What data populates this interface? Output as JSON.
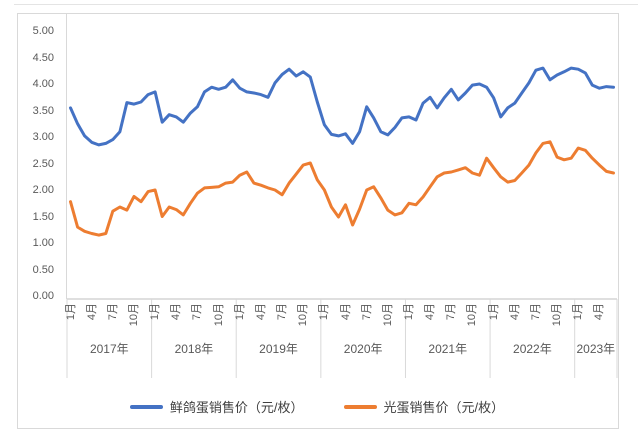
{
  "chart_data": {
    "type": "line",
    "title": "",
    "xlabel": "",
    "ylabel": "",
    "ylim": [
      0,
      5
    ],
    "y_ticks": [
      "0.00",
      "0.50",
      "1.00",
      "1.50",
      "2.00",
      "2.50",
      "3.00",
      "3.50",
      "4.00",
      "4.50",
      "5.00"
    ],
    "grid": false,
    "legend_position": "bottom",
    "x_axis_years": [
      {
        "label": "2017年",
        "month_ticks": [
          "1月",
          "4月",
          "7月",
          "10月"
        ],
        "n_points": 12
      },
      {
        "label": "2018年",
        "month_ticks": [
          "1月",
          "4月",
          "7月",
          "10月"
        ],
        "n_points": 12
      },
      {
        "label": "2019年",
        "month_ticks": [
          "1月",
          "4月",
          "7月",
          "10月"
        ],
        "n_points": 12
      },
      {
        "label": "2020年",
        "month_ticks": [
          "1月",
          "4月",
          "7月",
          "10月"
        ],
        "n_points": 12
      },
      {
        "label": "2021年",
        "month_ticks": [
          "1月",
          "4月",
          "7月",
          "10月"
        ],
        "n_points": 12
      },
      {
        "label": "2022年",
        "month_ticks": [
          "1月",
          "4月",
          "7月",
          "10月"
        ],
        "n_points": 12
      },
      {
        "label": "2023年",
        "month_ticks": [
          "1月",
          "4月"
        ],
        "n_points": 6
      }
    ],
    "series": [
      {
        "name": "鲜鸽蛋销售价（元/枚）",
        "color": "#4472C4",
        "values": [
          3.55,
          3.25,
          3.02,
          2.9,
          2.85,
          2.88,
          2.95,
          3.1,
          3.65,
          3.62,
          3.66,
          3.8,
          3.85,
          3.28,
          3.42,
          3.38,
          3.28,
          3.45,
          3.57,
          3.85,
          3.94,
          3.9,
          3.94,
          4.08,
          3.92,
          3.85,
          3.83,
          3.8,
          3.75,
          4.02,
          4.18,
          4.28,
          4.15,
          4.23,
          4.13,
          3.66,
          3.23,
          3.05,
          3.02,
          3.06,
          2.88,
          3.1,
          3.57,
          3.36,
          3.1,
          3.04,
          3.18,
          3.36,
          3.38,
          3.32,
          3.64,
          3.75,
          3.55,
          3.74,
          3.9,
          3.7,
          3.83,
          3.98,
          4.0,
          3.94,
          3.74,
          3.38,
          3.55,
          3.64,
          3.83,
          4.02,
          4.26,
          4.3,
          4.08,
          4.17,
          4.23,
          4.3,
          4.28,
          4.21,
          3.98,
          3.92,
          3.95,
          3.94
        ]
      },
      {
        "name": "光蛋销售价（元/枚）",
        "color": "#ED7D31",
        "values": [
          1.78,
          1.3,
          1.22,
          1.18,
          1.15,
          1.18,
          1.6,
          1.68,
          1.62,
          1.88,
          1.78,
          1.97,
          2.0,
          1.5,
          1.68,
          1.63,
          1.53,
          1.75,
          1.94,
          2.04,
          2.05,
          2.06,
          2.13,
          2.15,
          2.28,
          2.34,
          2.13,
          2.09,
          2.04,
          2.0,
          1.91,
          2.13,
          2.3,
          2.47,
          2.51,
          2.19,
          2.0,
          1.68,
          1.49,
          1.72,
          1.34,
          1.64,
          2.0,
          2.06,
          1.85,
          1.62,
          1.53,
          1.57,
          1.75,
          1.72,
          1.87,
          2.06,
          2.25,
          2.32,
          2.34,
          2.38,
          2.42,
          2.32,
          2.28,
          2.6,
          2.42,
          2.25,
          2.15,
          2.18,
          2.32,
          2.47,
          2.7,
          2.88,
          2.91,
          2.62,
          2.57,
          2.6,
          2.79,
          2.75,
          2.6,
          2.47,
          2.35,
          2.32
        ]
      }
    ]
  },
  "colors": {
    "axis_text": "#595959",
    "legend_text": "#404040",
    "axis_line": "#bfbfbf",
    "separator": "#d9d9d9",
    "chart_border": "#d9d9d9",
    "background": "#ffffff"
  }
}
